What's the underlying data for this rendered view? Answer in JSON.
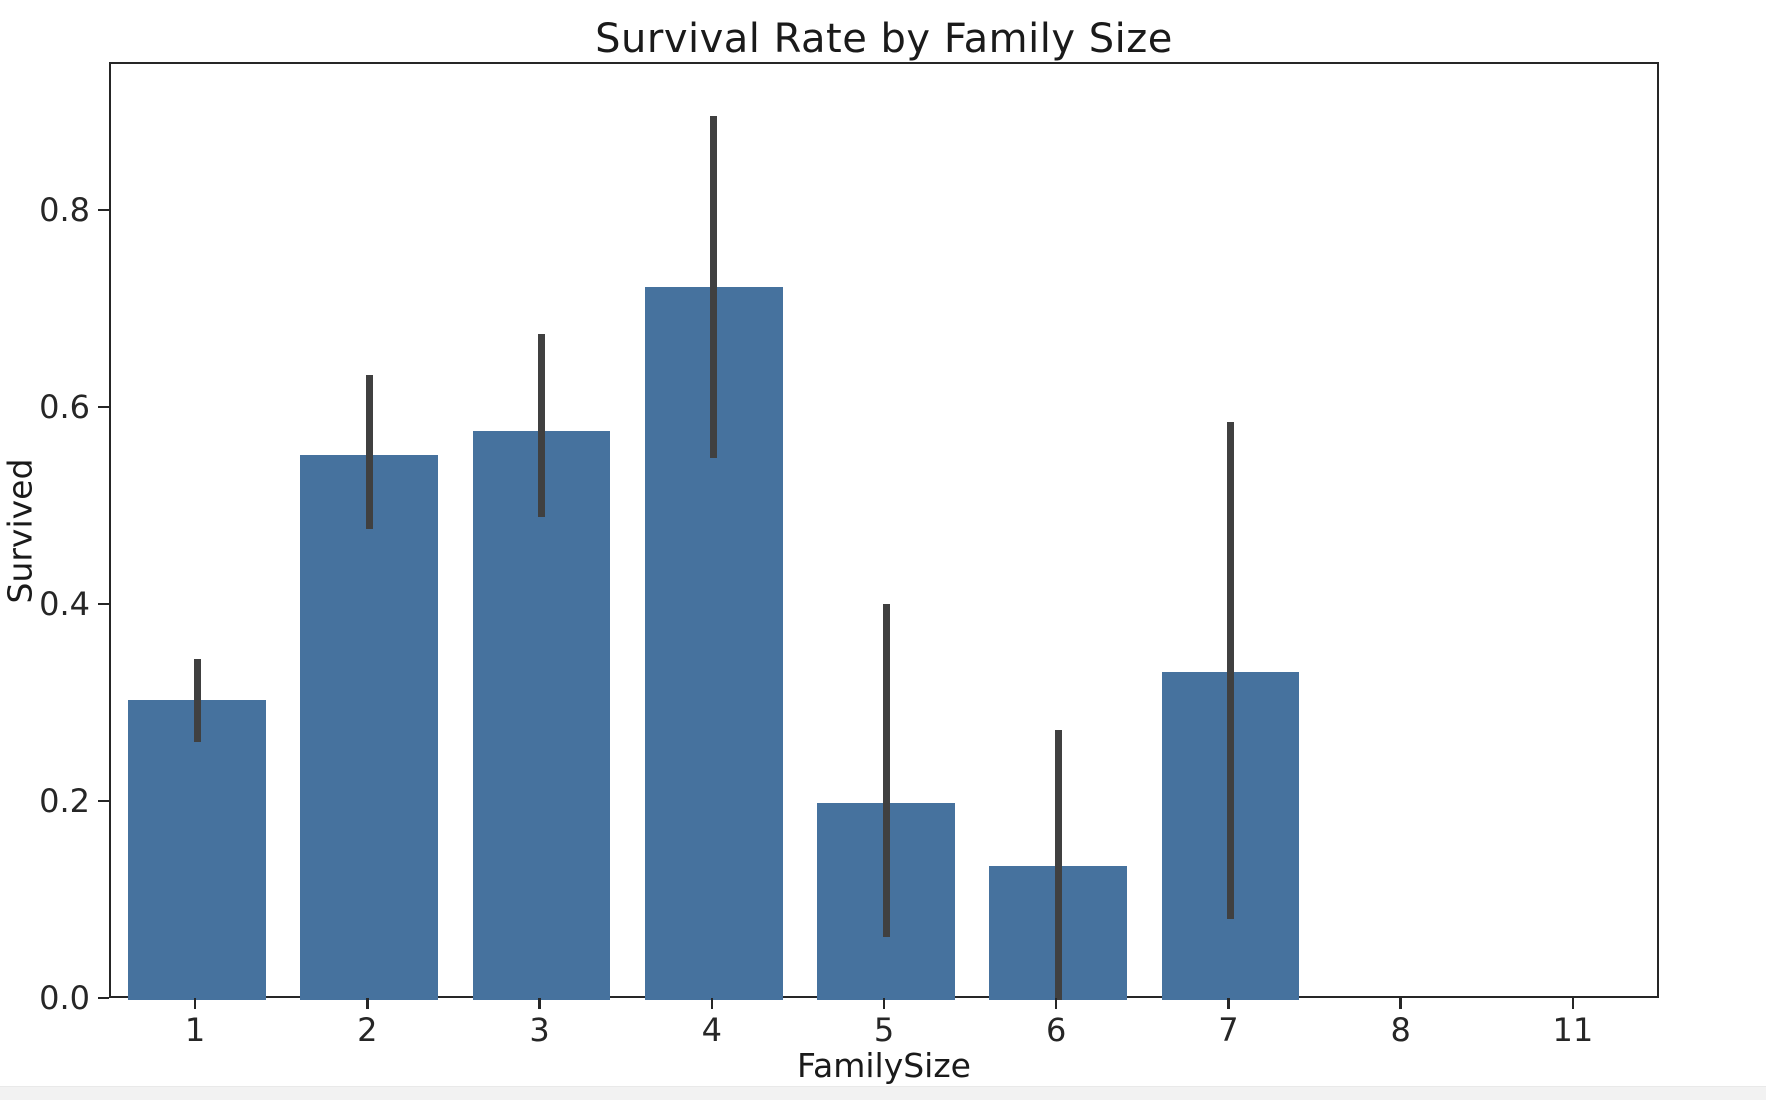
{
  "chart_data": {
    "type": "bar",
    "title": "Survival Rate by Family Size",
    "xlabel": "FamilySize",
    "ylabel": "Survived",
    "categories": [
      "1",
      "2",
      "3",
      "4",
      "5",
      "6",
      "7",
      "8",
      "11"
    ],
    "values": [
      0.304,
      0.553,
      0.578,
      0.724,
      0.2,
      0.136,
      0.333,
      0.0,
      0.0
    ],
    "error_bars": [
      {
        "low": 0.262,
        "high": 0.346
      },
      {
        "low": 0.478,
        "high": 0.634
      },
      {
        "low": 0.49,
        "high": 0.676
      },
      {
        "low": 0.55,
        "high": 0.897
      },
      {
        "low": 0.064,
        "high": 0.402
      },
      {
        "low": 0.0,
        "high": 0.274
      },
      {
        "low": 0.082,
        "high": 0.587
      },
      null,
      null
    ],
    "yticks": [
      0.0,
      0.2,
      0.4,
      0.6,
      0.8
    ],
    "ytick_labels": [
      "0.0",
      "0.2",
      "0.4",
      "0.6",
      "0.8"
    ],
    "ylim": [
      0,
      0.95
    ],
    "grid": false,
    "legend_position": "none",
    "bar_color": "#46729E",
    "error_color": "#404040",
    "axis_color": "#262626"
  }
}
